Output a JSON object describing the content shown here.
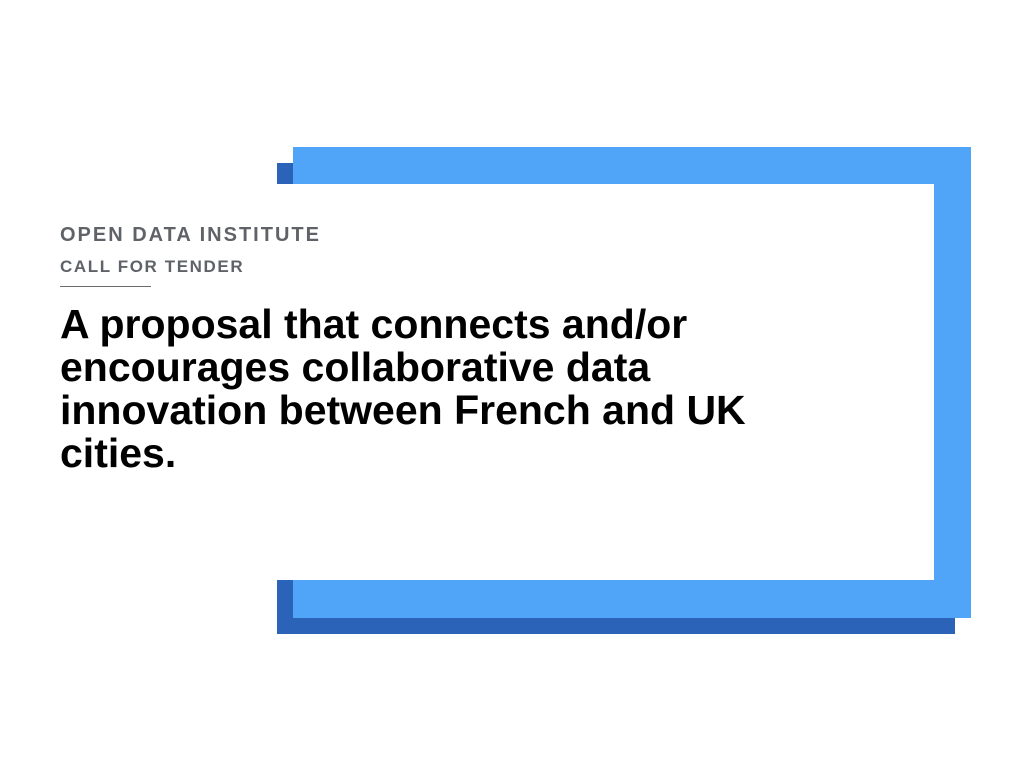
{
  "slide": {
    "organization": "OPEN DATA INSTITUTE",
    "document_type": "CALL FOR TENDER",
    "headline": "A proposal that connects and/or encourages collaborative data innovation between French and UK cities."
  },
  "colors": {
    "accent_light_blue": "#51a5f8",
    "accent_dark_blue": "#2b63b8",
    "label_gray": "#5f6368",
    "headline_black": "#000000"
  }
}
